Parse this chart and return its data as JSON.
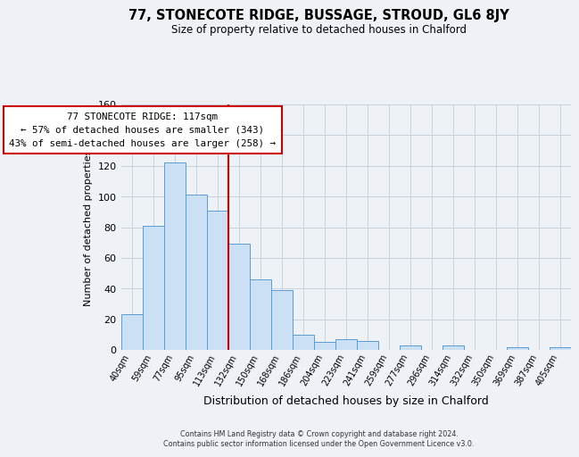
{
  "title": "77, STONECOTE RIDGE, BUSSAGE, STROUD, GL6 8JY",
  "subtitle": "Size of property relative to detached houses in Chalford",
  "xlabel": "Distribution of detached houses by size in Chalford",
  "ylabel": "Number of detached properties",
  "bar_labels": [
    "40sqm",
    "59sqm",
    "77sqm",
    "95sqm",
    "113sqm",
    "132sqm",
    "150sqm",
    "168sqm",
    "186sqm",
    "204sqm",
    "223sqm",
    "241sqm",
    "259sqm",
    "277sqm",
    "296sqm",
    "314sqm",
    "332sqm",
    "350sqm",
    "369sqm",
    "387sqm",
    "405sqm"
  ],
  "bar_values": [
    23,
    81,
    122,
    101,
    91,
    69,
    46,
    39,
    10,
    5,
    7,
    6,
    0,
    3,
    0,
    3,
    0,
    0,
    2,
    0,
    2
  ],
  "bar_color": "#cce0f5",
  "bar_edge_color": "#5b9bd5",
  "property_line_x": 4.5,
  "property_line_color": "#cc0000",
  "annotation_title": "77 STONECOTE RIDGE: 117sqm",
  "annotation_line1": "← 57% of detached houses are smaller (343)",
  "annotation_line2": "43% of semi-detached houses are larger (258) →",
  "annotation_box_color": "#ffffff",
  "annotation_box_edge": "#cc0000",
  "ylim": [
    0,
    160
  ],
  "yticks": [
    0,
    20,
    40,
    60,
    80,
    100,
    120,
    140,
    160
  ],
  "background_color": "#eef2f7",
  "footer1": "Contains HM Land Registry data © Crown copyright and database right 2024.",
  "footer2": "Contains public sector information licensed under the Open Government Licence v3.0."
}
